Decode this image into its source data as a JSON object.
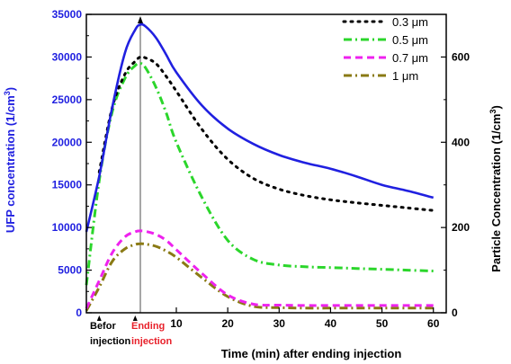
{
  "chart_data": {
    "type": "line",
    "title": "",
    "xlabel": "Time (min) after ending injection",
    "ylabel_left": "UFP concentration (1/cm",
    "ylabel_left_sup": "3",
    "ylabel_left_close": ")",
    "ylabel_right": "Particle Concentration (1/cm",
    "ylabel_right_sup": "3",
    "ylabel_right_close": ")",
    "xlim": [
      -7.5,
      62.5
    ],
    "ylim_left": [
      0,
      35000
    ],
    "ylim_right": [
      0,
      700
    ],
    "x_ticks": [
      {
        "value": 10,
        "label": "10"
      },
      {
        "value": 20,
        "label": "20"
      },
      {
        "value": 30,
        "label": "30"
      },
      {
        "value": 40,
        "label": "40"
      },
      {
        "value": 50,
        "label": "50"
      },
      {
        "value": 60,
        "label": "60"
      }
    ],
    "y_ticks_left": [
      {
        "value": 0,
        "label": "0"
      },
      {
        "value": 5000,
        "label": "5000"
      },
      {
        "value": 10000,
        "label": "10000"
      },
      {
        "value": 15000,
        "label": "15000"
      },
      {
        "value": 20000,
        "label": "20000"
      },
      {
        "value": 25000,
        "label": "25000"
      },
      {
        "value": 30000,
        "label": "30000"
      },
      {
        "value": 35000,
        "label": "35000"
      }
    ],
    "y_ticks_right": [
      {
        "value": 0,
        "label": "0"
      },
      {
        "value": 200,
        "label": "200"
      },
      {
        "value": 400,
        "label": "400"
      },
      {
        "value": 600,
        "label": "600"
      }
    ],
    "annotations": [
      {
        "lines": [
          "Befor",
          "injection"
        ],
        "color": "#000000"
      },
      {
        "lines": [
          "Ending",
          "injection"
        ],
        "color": "#e8202a"
      }
    ],
    "event_line_x": 3,
    "legend_position": "top-right",
    "series": [
      {
        "name": "UFP",
        "axis": "left",
        "color": "#2020e0",
        "dash": "solid",
        "x": [
          -7.5,
          -5,
          -2.5,
          0,
          2,
          3,
          4,
          6,
          8,
          10,
          15,
          20,
          25,
          30,
          35,
          40,
          45,
          50,
          55,
          60
        ],
        "y": [
          9500,
          16000,
          24000,
          30500,
          33200,
          33800,
          33600,
          32300,
          30300,
          28200,
          24300,
          21600,
          19800,
          18500,
          17600,
          16900,
          16000,
          15000,
          14300,
          13500
        ]
      },
      {
        "name": "0.3 μm",
        "axis": "right",
        "color": "#000000",
        "dash": "dotted",
        "x": [
          -5,
          -2.5,
          0,
          2,
          3,
          4,
          6,
          8,
          10,
          15,
          20,
          25,
          30,
          35,
          40,
          45,
          50,
          55,
          60
        ],
        "y": [
          330,
          480,
          560,
          590,
          600,
          598,
          585,
          555,
          520,
          430,
          360,
          315,
          290,
          275,
          265,
          258,
          252,
          246,
          240
        ]
      },
      {
        "name": "0.5 μm",
        "axis": "right",
        "color": "#2bd62b",
        "dash": "dashdot",
        "x": [
          -7.5,
          -5,
          -2.5,
          0,
          2,
          3,
          4,
          6,
          8,
          10,
          15,
          20,
          25,
          30,
          35,
          40,
          45,
          50,
          55,
          60
        ],
        "y": [
          65,
          310,
          470,
          550,
          580,
          585,
          575,
          530,
          470,
          400,
          270,
          170,
          125,
          112,
          108,
          106,
          104,
          102,
          100,
          98
        ]
      },
      {
        "name": "0.7 μm",
        "axis": "right",
        "color": "#ee22ee",
        "dash": "dashed",
        "x": [
          -7.5,
          -5,
          -2.5,
          0,
          2,
          3,
          4,
          6,
          8,
          10,
          15,
          20,
          25,
          30,
          35,
          40,
          45,
          50,
          55,
          60
        ],
        "y": [
          10,
          75,
          140,
          178,
          190,
          192,
          191,
          184,
          170,
          148,
          92,
          42,
          20,
          18,
          17,
          17,
          17,
          17,
          17,
          17
        ]
      },
      {
        "name": "1 μm",
        "axis": "right",
        "color": "#8a7a14",
        "dash": "dashdot",
        "x": [
          -7.5,
          -5,
          -2.5,
          0,
          2,
          3,
          4,
          6,
          8,
          10,
          15,
          20,
          25,
          30,
          35,
          40,
          45,
          50,
          55,
          60
        ],
        "y": [
          5,
          60,
          120,
          150,
          160,
          162,
          161,
          156,
          145,
          130,
          82,
          38,
          15,
          12,
          11,
          11,
          11,
          11,
          11,
          11
        ]
      }
    ]
  }
}
